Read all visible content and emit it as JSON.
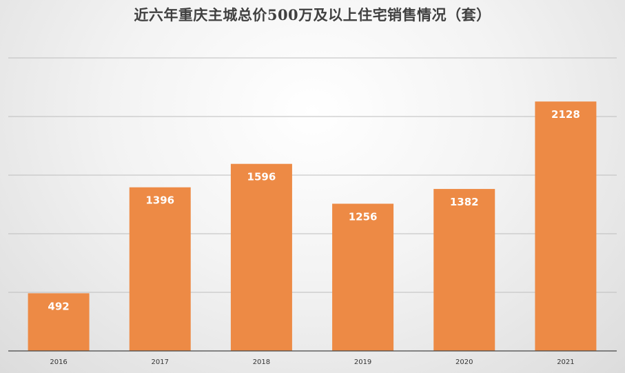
{
  "chart_data": {
    "type": "bar",
    "title": "近六年重庆主城总价500万及以上住宅销售情况（套）",
    "categories": [
      "2016",
      "2017",
      "2018",
      "2019",
      "2020",
      "2021"
    ],
    "values": [
      492,
      1396,
      1596,
      1256,
      1382,
      2128
    ],
    "ylim": [
      0,
      2500
    ],
    "grid": true,
    "bar_color": "#ed8a45",
    "gridline_color": "#bdbdbd"
  }
}
